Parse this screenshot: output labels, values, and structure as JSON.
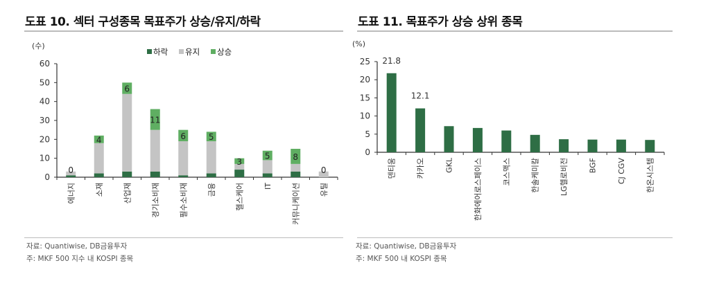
{
  "left": {
    "title": "도표 10. 섹터 구성종목 목표주가 상승/유지/하락",
    "source": "자료: Quantiwise, DB금융투자",
    "note": "주: MKF 500 지수 내 KOSPI 종목"
  },
  "right": {
    "title": "도표 11. 목표주가 상승 상위 종목",
    "source": "자료: Quantiwise, DB금융투자",
    "note": "주: MKF 500 내 KOSPI 종목"
  },
  "colors": {
    "down": "#2e6e45",
    "hold": "#c4c4c4",
    "up": "#5fae62",
    "bar": "#2e6e45"
  },
  "chart_data": [
    {
      "type": "bar",
      "stacked": true,
      "title": "도표 10. 섹터 구성종목 목표주가 상승/유지/하락",
      "ylabel": "(수)",
      "ylim": [
        0,
        60
      ],
      "yticks": [
        0,
        10,
        20,
        30,
        40,
        50,
        60
      ],
      "legend_position": "top-center",
      "categories": [
        "에너지",
        "소재",
        "산업재",
        "경기소비재",
        "필수소비재",
        "금융",
        "헬스케어",
        "IT",
        "커뮤니케이션",
        "유틸"
      ],
      "series": [
        {
          "name": "하락",
          "values": [
            1,
            2,
            3,
            3,
            1,
            2,
            4,
            2,
            3,
            0
          ]
        },
        {
          "name": "유지",
          "values": [
            2,
            16,
            41,
            22,
            18,
            17,
            3,
            7,
            4,
            3
          ]
        },
        {
          "name": "상승",
          "values": [
            0,
            4,
            6,
            11,
            6,
            5,
            3,
            5,
            8,
            0
          ]
        }
      ],
      "data_labels": [
        "0",
        "4",
        "6",
        "11",
        "6",
        "5",
        "3",
        "5",
        "8",
        "0"
      ]
    },
    {
      "type": "bar",
      "title": "도표 11. 목표주가 상승 상위 종목",
      "ylabel": "(%)",
      "ylim": [
        0,
        25
      ],
      "yticks": [
        0,
        5,
        10,
        15,
        20,
        25
      ],
      "categories": [
        "덴티움",
        "카카오",
        "GKL",
        "한화에어로스페이스",
        "코스맥스",
        "한솔케미칼",
        "LG헬로비전",
        "BGF",
        "CJ CGV",
        "한온시스템"
      ],
      "values": [
        21.8,
        12.1,
        7.2,
        6.7,
        6.0,
        4.8,
        3.6,
        3.5,
        3.5,
        3.4
      ],
      "data_labels": [
        "21.8",
        "12.1",
        "",
        "",
        "",
        "",
        "",
        "",
        "",
        ""
      ]
    }
  ]
}
